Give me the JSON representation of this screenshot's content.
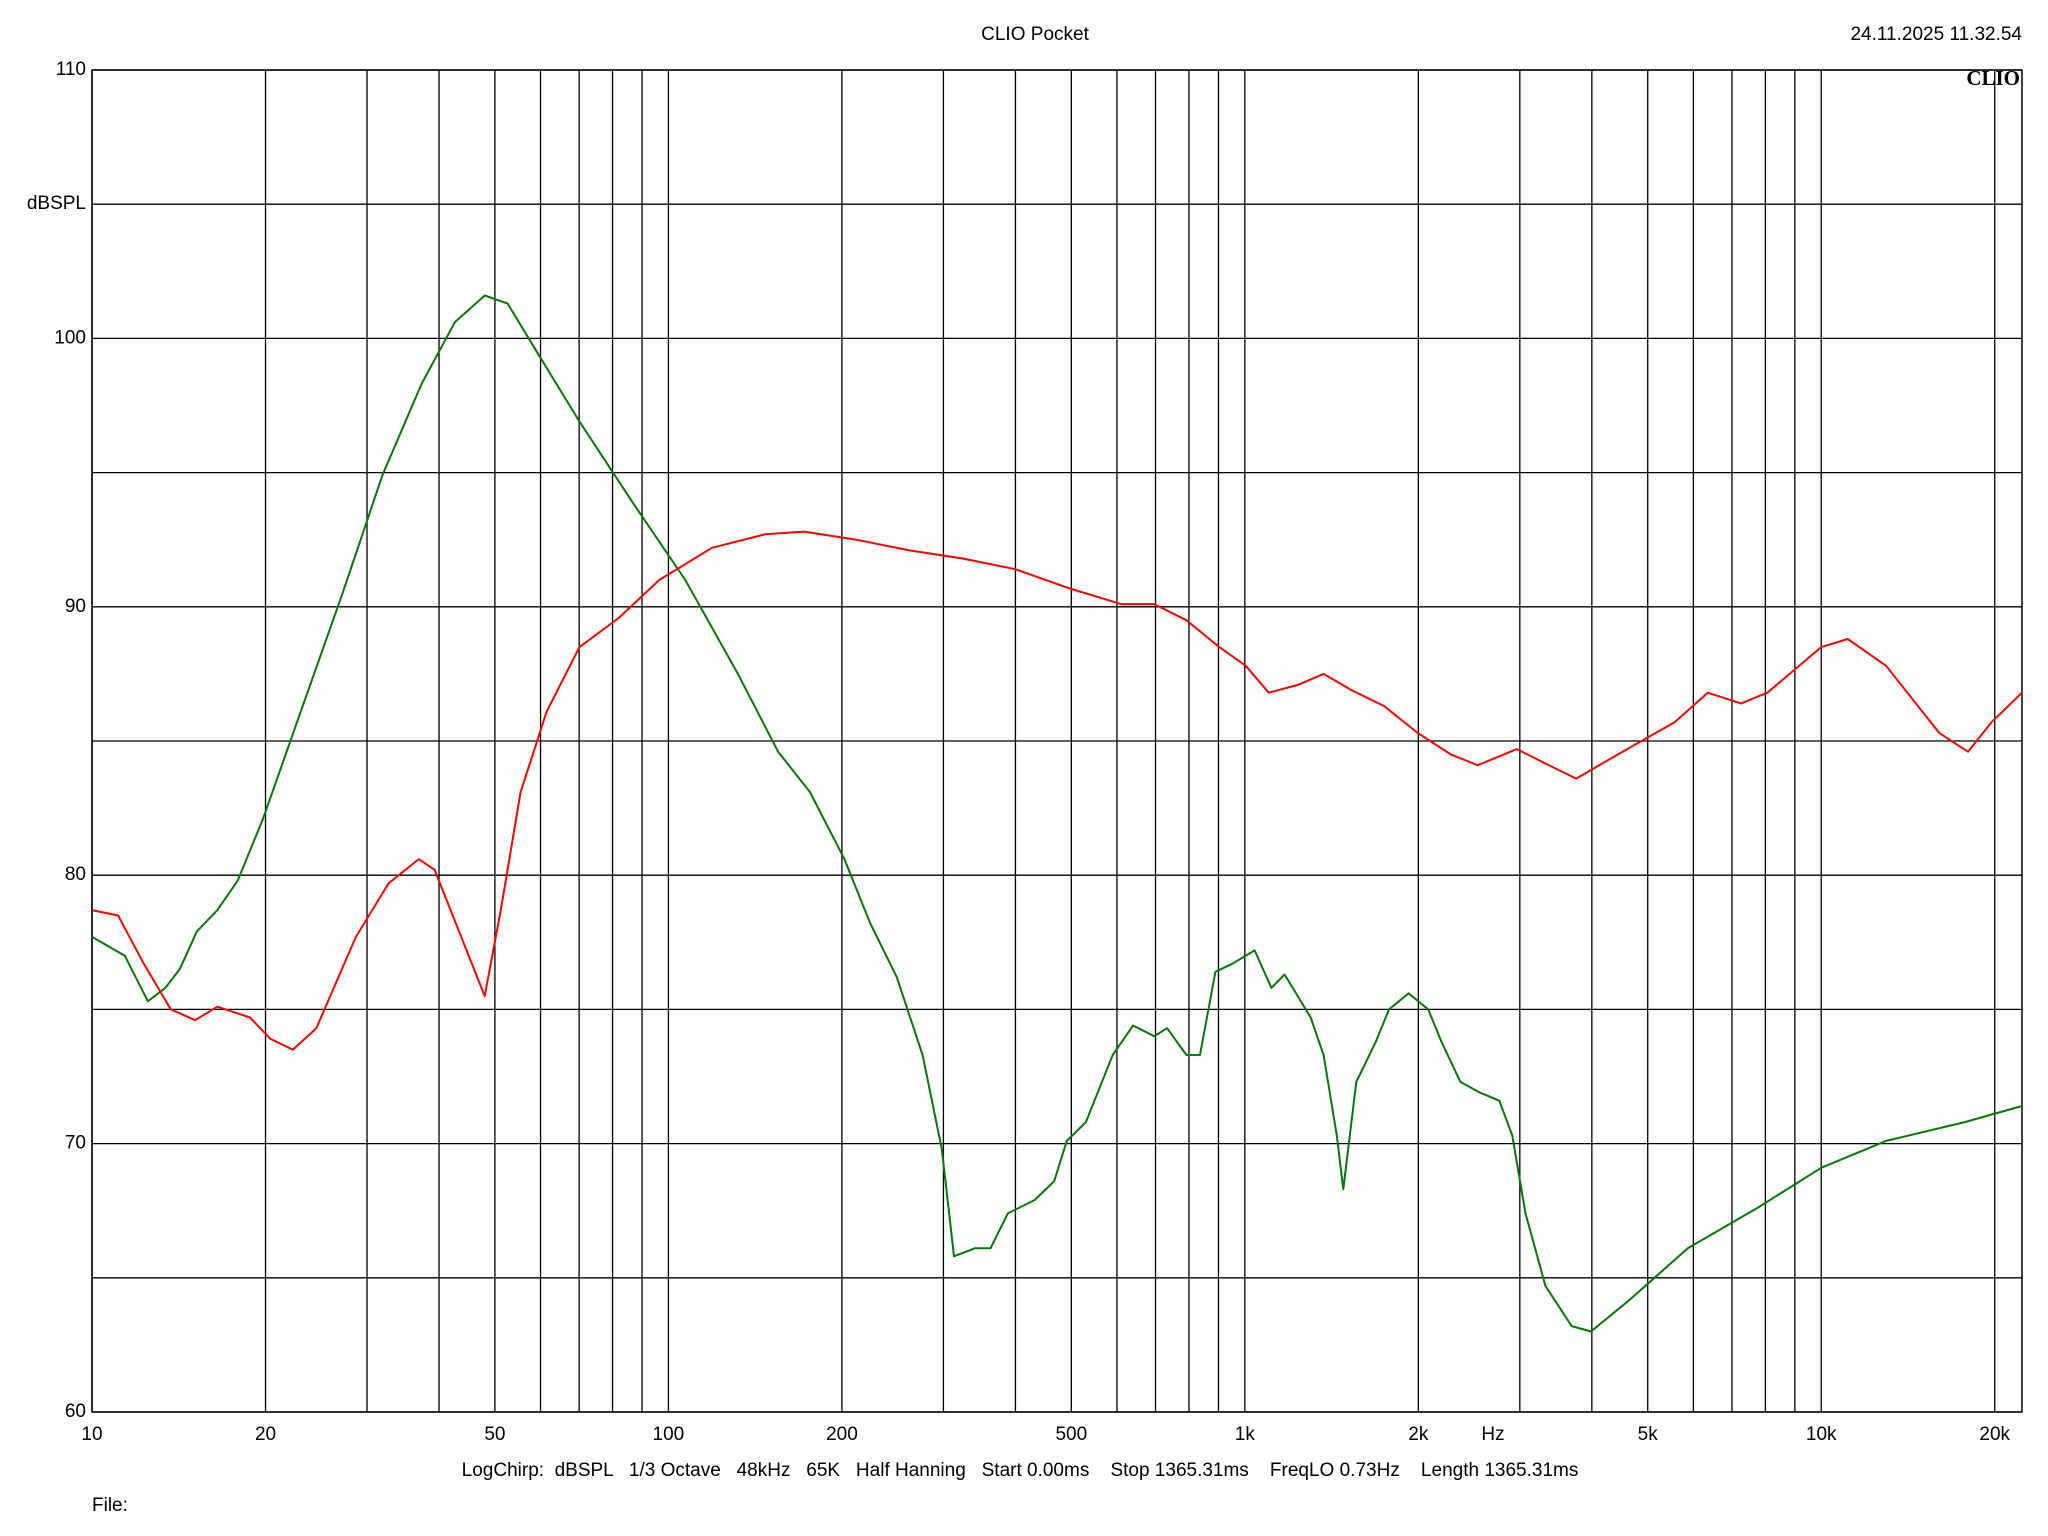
{
  "chart_data": {
    "type": "line",
    "title": "CLIO Pocket",
    "timestamp": "24.11.2025 11.32.54",
    "logo": "CLIO",
    "ylabel": "dBSPL",
    "xlabel": "Hz",
    "settings": "LogChirp:  dBSPL   1/3 Octave   48kHz   65K   Half Hanning   Start 0.00ms    Stop 1365.31ms    FreqLO 0.73Hz    Length 1365.31ms",
    "file_label": "File:",
    "xscale": "log",
    "grid": true,
    "xlim": [
      10,
      22300
    ],
    "ylim": [
      60,
      110
    ],
    "yticks": [
      60,
      70,
      80,
      90,
      100,
      110
    ],
    "y_minor_grid": [
      65,
      75,
      85,
      95,
      105
    ],
    "xticks": [
      10,
      20,
      50,
      100,
      200,
      500,
      {
        "value": 1000,
        "label": "1k"
      },
      {
        "value": 2000,
        "label": "2k"
      },
      {
        "value": 5000,
        "label": "5k"
      },
      {
        "value": 10000,
        "label": "10k"
      },
      {
        "value": 20000,
        "label": "20k"
      }
    ],
    "x_minor_grid": [
      30,
      40,
      60,
      70,
      80,
      90,
      300,
      400,
      600,
      700,
      800,
      900,
      3000,
      4000,
      6000,
      7000,
      8000,
      9000
    ],
    "series": [
      {
        "name": "green",
        "color": "#007a00",
        "x": [
          10,
          11.4,
          12.5,
          13.4,
          14.2,
          15.2,
          16.5,
          17.9,
          19.8,
          23.2,
          27.2,
          31.9,
          37.3,
          42.6,
          48,
          52.6,
          59.9,
          70.1,
          86.6,
          107,
          132,
          155,
          176,
          202,
          224,
          249,
          276,
          298,
          313,
          340,
          362,
          388,
          432,
          467,
          491,
          530,
          590,
          640,
          696,
          733,
          792,
          836,
          889,
          951,
          1040,
          1112,
          1172,
          1301,
          1370,
          1444,
          1482,
          1561,
          1688,
          1779,
          1924,
          2080,
          2193,
          2366,
          2558,
          2764,
          2911,
          3069,
          3323,
          3690,
          3987,
          4662,
          5869,
          7745,
          10000,
          12960,
          17740,
          22300
        ],
        "values": [
          77.7,
          77.0,
          75.3,
          75.8,
          76.5,
          77.9,
          78.7,
          79.8,
          82.1,
          86.3,
          90.5,
          94.9,
          98.3,
          100.6,
          101.6,
          101.3,
          99.3,
          96.9,
          93.9,
          91.0,
          87.5,
          84.6,
          83.1,
          80.6,
          78.2,
          76.2,
          73.3,
          69.8,
          65.8,
          66.1,
          66.1,
          67.4,
          67.9,
          68.6,
          70.1,
          70.8,
          73.3,
          74.4,
          74.0,
          74.3,
          73.3,
          73.3,
          76.4,
          76.7,
          77.2,
          75.8,
          76.3,
          74.7,
          73.3,
          70.3,
          68.3,
          72.3,
          73.8,
          75.0,
          75.6,
          75.0,
          73.8,
          72.3,
          71.9,
          71.6,
          70.3,
          67.4,
          64.7,
          63.2,
          63.0,
          64.2,
          66.1,
          67.6,
          69.1,
          70.1,
          70.8,
          71.4
        ]
      },
      {
        "name": "red",
        "color": "#ff0000",
        "x": [
          10,
          11.1,
          12.3,
          13.7,
          15.1,
          16.5,
          18.8,
          20.4,
          22.3,
          24.5,
          28.7,
          32.7,
          36.9,
          39.3,
          43.7,
          48,
          51.2,
          55.4,
          61.5,
          70.1,
          82.2,
          96.4,
          119,
          147,
          172,
          212,
          262,
          324,
          400,
          494,
          610,
          696,
          792,
          903,
          1004,
          1100,
          1240,
          1370,
          1530,
          1745,
          1994,
          2277,
          2534,
          2965,
          3296,
          3757,
          4521,
          5566,
          6356,
          7257,
          8064,
          10000,
          11120,
          12960,
          16020,
          17970,
          19740,
          22300
        ],
        "values": [
          78.7,
          78.5,
          76.7,
          75.0,
          74.6,
          75.1,
          74.7,
          73.9,
          73.5,
          74.3,
          77.7,
          79.7,
          80.6,
          80.2,
          77.7,
          75.5,
          78.7,
          83.1,
          86.1,
          88.5,
          89.6,
          91.0,
          92.2,
          92.7,
          92.8,
          92.5,
          92.1,
          91.8,
          91.4,
          90.7,
          90.1,
          90.1,
          89.5,
          88.5,
          87.8,
          86.8,
          87.1,
          87.5,
          86.9,
          86.3,
          85.3,
          84.5,
          84.1,
          84.7,
          84.2,
          83.6,
          84.6,
          85.7,
          86.8,
          86.4,
          86.8,
          88.5,
          88.8,
          87.8,
          85.3,
          84.6,
          85.7,
          86.8
        ]
      }
    ]
  }
}
